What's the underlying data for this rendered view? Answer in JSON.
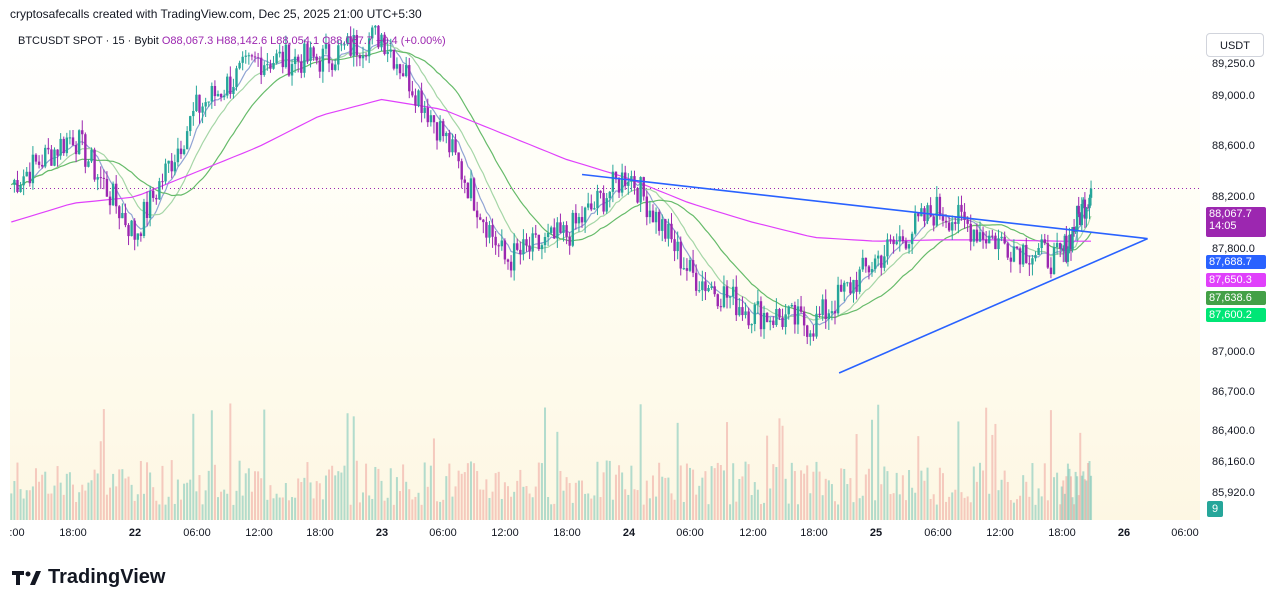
{
  "header": {
    "text": "cryptosafecalls created with TradingView.com, Dec 25, 2025 21:00 UTC+5:30"
  },
  "legend": {
    "symbol": "BTCUSDT SPOT · 15 · Bybit",
    "open": "O88,067.3",
    "high": "H88,142.6",
    "low": "L88,054.1",
    "close": "C88,067.7",
    "change": "+0.4 (+0.00%)"
  },
  "price_axis": {
    "currency": "USDT",
    "ticks": [
      "89,250.0",
      "89,000.0",
      "88,600.0",
      "88,200.0",
      "87,800.0",
      "87,000.0",
      "86,700.0",
      "86,400.0",
      "86,160.0",
      "85,920.0"
    ],
    "tags": [
      {
        "value": "88,067.7",
        "sub": "14:05",
        "color": "#9c27b0"
      },
      {
        "value": "87,688.7",
        "color": "#2962ff"
      },
      {
        "value": "87,650.3",
        "color": "#e040fb"
      },
      {
        "value": "87,638.6",
        "color": "#43a047"
      },
      {
        "value": "87,600.2",
        "color": "#00e676"
      }
    ]
  },
  "time_axis": {
    "labels": [
      {
        "text": ":00",
        "bold": false
      },
      {
        "text": "18:00",
        "bold": false
      },
      {
        "text": "22",
        "bold": true
      },
      {
        "text": "06:00",
        "bold": false
      },
      {
        "text": "12:00",
        "bold": false
      },
      {
        "text": "18:00",
        "bold": false
      },
      {
        "text": "23",
        "bold": true
      },
      {
        "text": "06:00",
        "bold": false
      },
      {
        "text": "12:00",
        "bold": false
      },
      {
        "text": "18:00",
        "bold": false
      },
      {
        "text": "24",
        "bold": true
      },
      {
        "text": "06:00",
        "bold": false
      },
      {
        "text": "12:00",
        "bold": false
      },
      {
        "text": "18:00",
        "bold": false
      },
      {
        "text": "25",
        "bold": true
      },
      {
        "text": "06:00",
        "bold": false
      },
      {
        "text": "12:00",
        "bold": false
      },
      {
        "text": "18:00",
        "bold": false
      },
      {
        "text": "26",
        "bold": true
      },
      {
        "text": "06:00",
        "bold": false
      }
    ]
  },
  "volume_badge": "9",
  "footer": {
    "brand": "TradingView"
  },
  "colors": {
    "up": "#26a69a",
    "down": "#9c27b0",
    "ma_pink": "#e040fb",
    "ma_green": "#66bb6a",
    "ma_lightgreen": "#a5d6a7",
    "ma_blue": "#90a4d4",
    "trend": "#2962ff"
  },
  "chart_data": {
    "type": "line",
    "title": "BTCUSDT SPOT · 15 · Bybit",
    "ylabel": "USDT",
    "ylim": [
      85800,
      89400
    ],
    "x": [
      "21 12:00",
      "21 18:00",
      "22 00:00",
      "22 06:00",
      "22 12:00",
      "22 18:00",
      "23 00:00",
      "23 06:00",
      "23 12:00",
      "23 18:00",
      "24 00:00",
      "24 06:00",
      "24 12:00",
      "24 18:00",
      "25 00:00",
      "25 06:00",
      "25 12:00",
      "25 18:00",
      "25 21:00"
    ],
    "series": [
      {
        "name": "Price",
        "values": [
          88100,
          88500,
          87700,
          88700,
          89100,
          89100,
          89300,
          88500,
          87500,
          87700,
          88200,
          87400,
          87100,
          87000,
          87500,
          87900,
          87650,
          87500,
          88067
        ]
      },
      {
        "name": "MA long",
        "values": [
          87800,
          87950,
          88000,
          88200,
          88400,
          88650,
          88780,
          88700,
          88500,
          88300,
          88150,
          87950,
          87800,
          87680,
          87650,
          87660,
          87660,
          87650,
          87650
        ]
      }
    ],
    "trendlines": [
      {
        "name": "upper",
        "from": [
          "23 19:30",
          88180
        ],
        "to": [
          "26 02:30",
          87670
        ]
      },
      {
        "name": "lower",
        "from": [
          "24 20:30",
          86620
        ],
        "to": [
          "26 02:30",
          87670
        ]
      }
    ],
    "current_price": 88067.7,
    "countdown": "14:05"
  }
}
